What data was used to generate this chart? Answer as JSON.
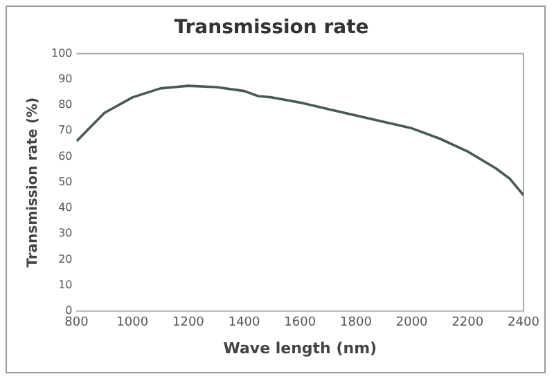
{
  "chart_data": {
    "type": "line",
    "title": "Transmission rate",
    "xlabel": "Wave length (nm)",
    "ylabel": "Transmission rate (%)",
    "x": [
      800,
      900,
      1000,
      1100,
      1200,
      1300,
      1400,
      1450,
      1500,
      1600,
      1700,
      1800,
      1900,
      2000,
      2100,
      2200,
      2300,
      2350,
      2400
    ],
    "series": [
      {
        "color": "#4a5858",
        "values": [
          66,
          77,
          83,
          86.5,
          87.5,
          87,
          85.5,
          83.5,
          83,
          81,
          78.5,
          76,
          73.5,
          71,
          67,
          62,
          55.5,
          51.5,
          45
        ]
      }
    ],
    "xlim": [
      800,
      2400
    ],
    "xticks": [
      800,
      1000,
      1200,
      1400,
      1600,
      1800,
      2000,
      2200,
      2400
    ],
    "ylim": [
      0,
      100
    ],
    "yticks": [
      0,
      10,
      20,
      30,
      40,
      50,
      60,
      70,
      80,
      90,
      100
    ],
    "grid": false,
    "legend": false,
    "marker": "none",
    "line_style": "solid"
  }
}
